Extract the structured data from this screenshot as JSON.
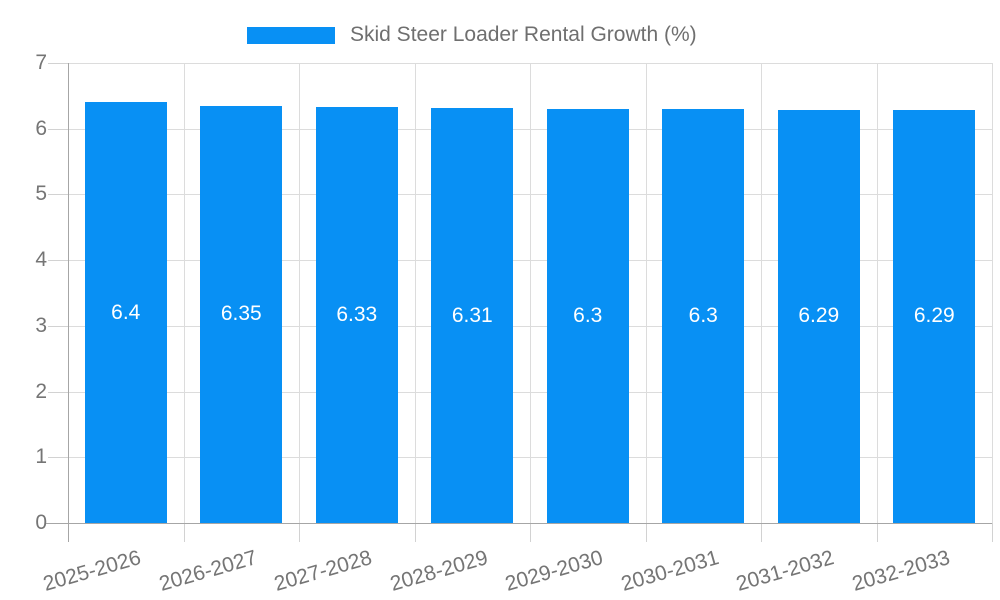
{
  "legend": {
    "label": "Skid Steer Loader Rental Growth (%)"
  },
  "chart_data": {
    "type": "bar",
    "title": "",
    "xlabel": "",
    "ylabel": "",
    "legend_position": "top-center",
    "legend_entries": [
      "Skid Steer Loader Rental Growth (%)"
    ],
    "categories": [
      "2025-2026",
      "2026-2027",
      "2027-2028",
      "2028-2029",
      "2029-2030",
      "2030-2031",
      "2031-2032",
      "2032-2033"
    ],
    "series": [
      {
        "name": "Skid Steer Loader Rental Growth (%)",
        "values": [
          6.4,
          6.35,
          6.33,
          6.31,
          6.3,
          6.3,
          6.29,
          6.29
        ]
      }
    ],
    "value_labels": [
      "6.4",
      "6.35",
      "6.33",
      "6.31",
      "6.3",
      "6.3",
      "6.29",
      "6.29"
    ],
    "ylim": [
      0,
      7
    ],
    "y_ticks": [
      0,
      1,
      2,
      3,
      4,
      5,
      6,
      7
    ],
    "grid": true,
    "colors": {
      "bar": "#0890f4",
      "value_label": "#ffffff",
      "axis_line": "#a6a6a6",
      "gridline": "#dcdcdc",
      "tick": "#d2d2d2",
      "axis_label": "#757575",
      "legend_text": "#6f6f6f",
      "background": "#ffffff"
    }
  }
}
